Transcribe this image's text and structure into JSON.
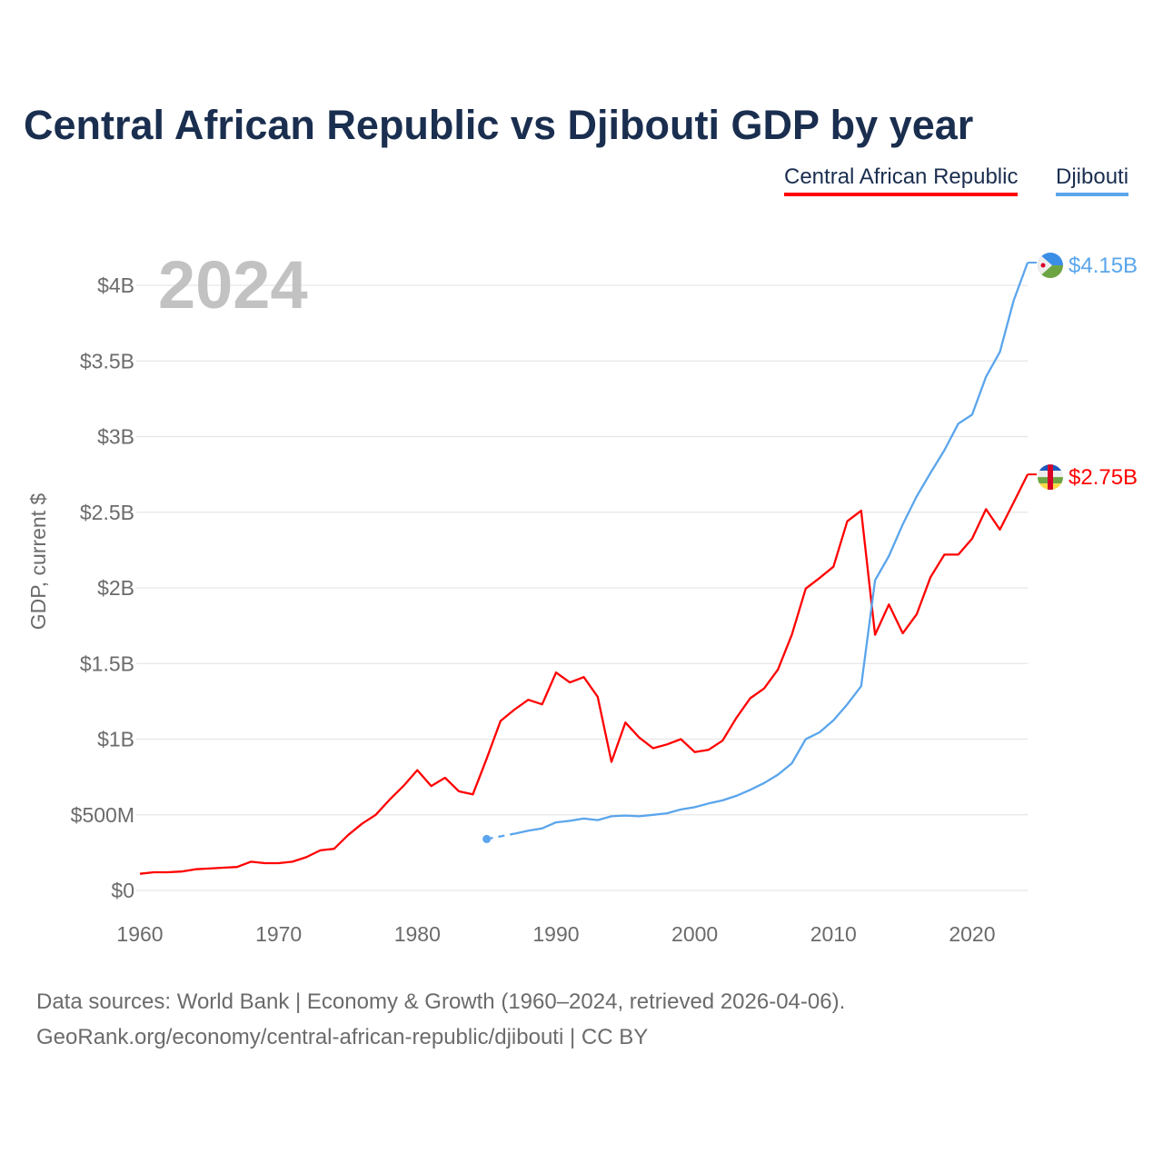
{
  "title": "Central African Republic vs Djibouti GDP by year",
  "legend": [
    {
      "label": "Central African Republic",
      "color": "#ff0000"
    },
    {
      "label": "Djibouti",
      "color": "#5aa5ec"
    }
  ],
  "year_label": "2024",
  "footer": {
    "line1": "Data sources: World Bank | Economy & Growth (1960–2024, retrieved 2026-04-06).",
    "line2": "GeoRank.org/economy/central-african-republic/djibouti | CC BY"
  },
  "chart_data": {
    "type": "line",
    "title": "Central African Republic vs Djibouti GDP by year",
    "xlabel": "",
    "ylabel": "GDP, current $",
    "xlim": [
      1960,
      2024
    ],
    "ylim": [
      0,
      4.3
    ],
    "grid": true,
    "legend_position": "top-right",
    "x_ticks": [
      1960,
      1970,
      1980,
      1990,
      2000,
      2010,
      2020
    ],
    "x_tick_labels": [
      "1960",
      "1970",
      "1980",
      "1990",
      "2000",
      "2010",
      "2020"
    ],
    "y_ticks": [
      0,
      0.5,
      1,
      1.5,
      2,
      2.5,
      3,
      3.5,
      4
    ],
    "y_tick_labels": [
      "$0",
      "$500M",
      "$1B",
      "$1.5B",
      "$2B",
      "$2.5B",
      "$3B",
      "$3.5B",
      "$4B"
    ],
    "units": "billions USD",
    "series": [
      {
        "name": "Central African Republic",
        "color": "#ff0000",
        "end_label": "$2.75B",
        "flag": "central-african-republic-flag",
        "x": [
          1960,
          1961,
          1962,
          1963,
          1964,
          1965,
          1966,
          1967,
          1968,
          1969,
          1970,
          1971,
          1972,
          1973,
          1974,
          1975,
          1976,
          1977,
          1978,
          1979,
          1980,
          1981,
          1982,
          1983,
          1984,
          1985,
          1986,
          1987,
          1988,
          1989,
          1990,
          1991,
          1992,
          1993,
          1994,
          1995,
          1996,
          1997,
          1998,
          1999,
          2000,
          2001,
          2002,
          2003,
          2004,
          2005,
          2006,
          2007,
          2008,
          2009,
          2010,
          2011,
          2012,
          2013,
          2014,
          2015,
          2016,
          2017,
          2018,
          2019,
          2020,
          2021,
          2022,
          2023,
          2024
        ],
        "values": [
          0.11,
          0.12,
          0.12,
          0.125,
          0.14,
          0.145,
          0.15,
          0.155,
          0.19,
          0.18,
          0.18,
          0.19,
          0.22,
          0.265,
          0.275,
          0.365,
          0.44,
          0.5,
          0.6,
          0.69,
          0.795,
          0.69,
          0.745,
          0.655,
          0.635,
          0.87,
          1.12,
          1.195,
          1.26,
          1.23,
          1.44,
          1.375,
          1.41,
          1.28,
          0.85,
          1.11,
          1.01,
          0.94,
          0.965,
          1.0,
          0.915,
          0.93,
          0.99,
          1.14,
          1.27,
          1.335,
          1.46,
          1.69,
          1.995,
          2.065,
          2.14,
          2.44,
          2.51,
          1.69,
          1.89,
          1.7,
          1.825,
          2.07,
          2.22,
          2.22,
          2.325,
          2.52,
          2.385,
          2.565,
          2.75
        ]
      },
      {
        "name": "Djibouti",
        "color": "#5aa5ec",
        "end_label": "$4.15B",
        "flag": "djibouti-flag",
        "x": [
          1985,
          1986,
          1987,
          1988,
          1989,
          1990,
          1991,
          1992,
          1993,
          1994,
          1995,
          1996,
          1997,
          1998,
          1999,
          2000,
          2001,
          2002,
          2003,
          2004,
          2005,
          2006,
          2007,
          2008,
          2009,
          2010,
          2011,
          2012,
          2013,
          2014,
          2015,
          2016,
          2017,
          2018,
          2019,
          2020,
          2021,
          2022,
          2023,
          2024
        ],
        "values": [
          0.34,
          null,
          0.375,
          0.395,
          0.41,
          0.45,
          0.46,
          0.475,
          0.465,
          0.49,
          0.495,
          0.49,
          0.5,
          0.51,
          0.535,
          0.55,
          0.575,
          0.595,
          0.625,
          0.665,
          0.71,
          0.765,
          0.84,
          1.0,
          1.045,
          1.125,
          1.23,
          1.35,
          2.05,
          2.21,
          2.42,
          2.605,
          2.76,
          2.91,
          3.085,
          3.145,
          3.395,
          3.56,
          3.9,
          4.15
        ]
      }
    ]
  }
}
